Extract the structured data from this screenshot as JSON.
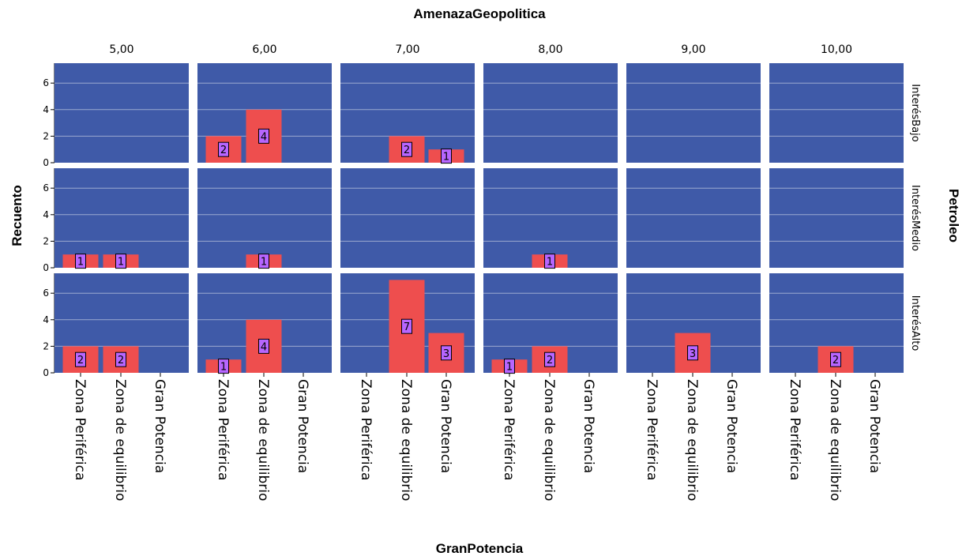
{
  "chart_data": {
    "type": "bar",
    "title_top": "AmenazaGeopolitica",
    "title_right": "Petroleo",
    "ylabel": "Recuento",
    "xlabel": "GranPotencia",
    "columns": [
      "5,00",
      "6,00",
      "7,00",
      "8,00",
      "9,00",
      "10,00"
    ],
    "rows": [
      "InterésBajo",
      "InterésMedio",
      "InterésAlto"
    ],
    "categories": [
      "Zona Periférica",
      "Zona de equilibrio",
      "Gran Potencia"
    ],
    "yticks": [
      "0",
      "2",
      "4",
      "6"
    ],
    "ylim": [
      0,
      7.5
    ],
    "grid": true,
    "values": [
      [
        [
          0,
          0,
          0
        ],
        [
          2,
          4,
          0
        ],
        [
          0,
          2,
          1
        ],
        [
          0,
          0,
          0
        ],
        [
          0,
          0,
          0
        ],
        [
          0,
          0,
          0
        ]
      ],
      [
        [
          1,
          1,
          0
        ],
        [
          0,
          1,
          0
        ],
        [
          0,
          0,
          0
        ],
        [
          0,
          1,
          0
        ],
        [
          0,
          0,
          0
        ],
        [
          0,
          0,
          0
        ]
      ],
      [
        [
          2,
          2,
          0
        ],
        [
          1,
          4,
          0
        ],
        [
          0,
          7,
          3
        ],
        [
          1,
          2,
          0
        ],
        [
          0,
          3,
          0
        ],
        [
          0,
          2,
          0
        ]
      ]
    ],
    "colors": {
      "panel_bg": "#3F5AA8",
      "bar": "#EE4E4E",
      "label_box": "#B766FF",
      "gridline": "#9CA9CF"
    }
  }
}
